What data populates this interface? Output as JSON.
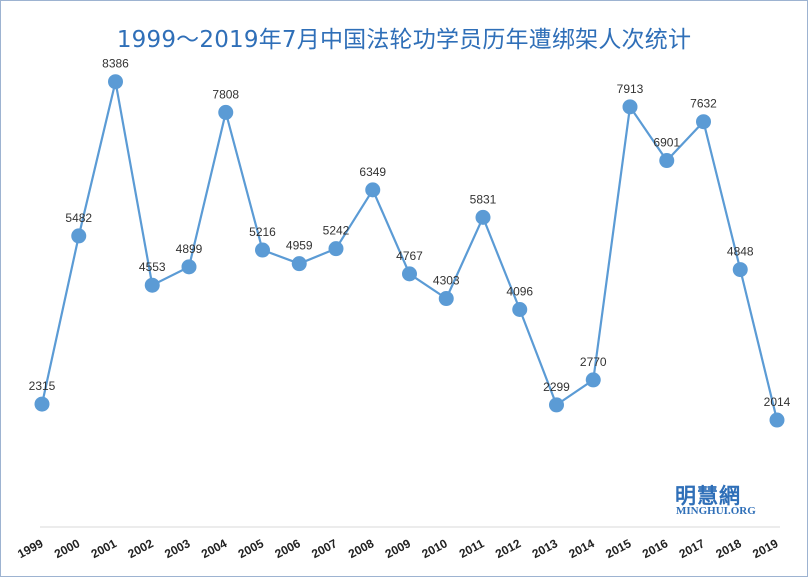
{
  "chart_data": {
    "type": "line",
    "title": "1999～2019年7月中国法轮功学员历年遭绑架人次统计",
    "xlabel": "",
    "ylabel": "",
    "categories": [
      "1999",
      "2000",
      "2001",
      "2002",
      "2003",
      "2004",
      "2005",
      "2006",
      "2007",
      "2008",
      "2009",
      "2010",
      "2011",
      "2012",
      "2013",
      "2014",
      "2015",
      "2016",
      "2017",
      "2018",
      "2019"
    ],
    "series": [
      {
        "values": [
          2315,
          5482,
          8386,
          4553,
          4899,
          7808,
          5216,
          4959,
          5242,
          6349,
          4767,
          4303,
          5831,
          4096,
          2299,
          2770,
          7913,
          6901,
          7632,
          4848,
          2014
        ]
      }
    ],
    "ylim": [
      0,
      9000
    ],
    "grid": false,
    "data_labels": true,
    "colors": {
      "line": "#5b9bd5",
      "marker": "#5b9bd5",
      "title": "#2f6fb8"
    }
  },
  "watermark": {
    "cn": "明慧網",
    "en": "MINGHUI.ORG"
  }
}
